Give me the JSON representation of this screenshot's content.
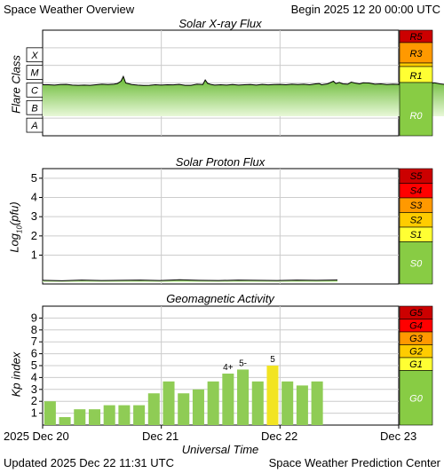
{
  "header": {
    "title": "Space Weather Overview",
    "begin": "Begin 2025 12 20 00:00 UTC"
  },
  "footer": {
    "updated": "Updated 2025 Dec 22 11:31 UTC",
    "center": "Space Weather Prediction Center",
    "xaxis_label": "Universal Time",
    "x_ticks": [
      "2025 Dec 20",
      "Dec 21",
      "Dec 22",
      "Dec 23"
    ]
  },
  "colors": {
    "red_dark": "#cc0000",
    "red": "#ff0000",
    "orange": "#ff9900",
    "gold": "#ffcc00",
    "yellow": "#ffff33",
    "green_scale": "#88cc44",
    "bar_green": "#8fcc55",
    "bar_highlight": "#f2e422",
    "fill_top": "#66b830",
    "fill_bottom": "#e8f8d8"
  },
  "chart_data": [
    {
      "type": "area",
      "title": "Solar X-ray Flux",
      "ylabel": "Flare Class",
      "y_classes": [
        "X",
        "M",
        "C",
        "B",
        "A"
      ],
      "scale": [
        {
          "label": "R5",
          "color": "#cc0000"
        },
        {
          "label": "R3",
          "color": "#ff9900"
        },
        {
          "label": "R1",
          "color": "#ffff33"
        },
        {
          "label": "R0",
          "color": "#88cc44"
        }
      ],
      "series": [
        {
          "values": [
            [
              0.0,
              4.35
            ],
            [
              0.05,
              4.35
            ],
            [
              0.1,
              4.33
            ],
            [
              0.15,
              4.36
            ],
            [
              0.2,
              4.37
            ],
            [
              0.25,
              4.33
            ],
            [
              0.3,
              4.32
            ],
            [
              0.35,
              4.33
            ],
            [
              0.4,
              4.32
            ],
            [
              0.45,
              4.35
            ],
            [
              0.5,
              4.38
            ],
            [
              0.55,
              4.36
            ],
            [
              0.6,
              4.38
            ],
            [
              0.63,
              4.42
            ],
            [
              0.66,
              4.55
            ],
            [
              0.68,
              4.82
            ],
            [
              0.7,
              4.45
            ],
            [
              0.75,
              4.36
            ],
            [
              0.8,
              4.33
            ],
            [
              0.85,
              4.31
            ],
            [
              0.9,
              4.32
            ],
            [
              0.95,
              4.35
            ],
            [
              1.0,
              4.33
            ],
            [
              1.05,
              4.35
            ],
            [
              1.1,
              4.34
            ],
            [
              1.15,
              4.37
            ],
            [
              1.2,
              4.32
            ],
            [
              1.25,
              4.32
            ],
            [
              1.3,
              4.38
            ],
            [
              1.35,
              4.36
            ],
            [
              1.37,
              4.62
            ],
            [
              1.39,
              4.43
            ],
            [
              1.42,
              4.36
            ],
            [
              1.45,
              4.33
            ],
            [
              1.5,
              4.35
            ],
            [
              1.55,
              4.33
            ],
            [
              1.6,
              4.36
            ],
            [
              1.65,
              4.33
            ],
            [
              1.7,
              4.35
            ],
            [
              1.75,
              4.36
            ],
            [
              1.8,
              4.33
            ],
            [
              1.85,
              4.37
            ],
            [
              1.9,
              4.34
            ],
            [
              1.95,
              4.36
            ],
            [
              2.0,
              4.37
            ],
            [
              2.05,
              4.35
            ],
            [
              2.1,
              4.38
            ],
            [
              2.15,
              4.36
            ],
            [
              2.2,
              4.38
            ],
            [
              2.25,
              4.35
            ],
            [
              2.3,
              4.4
            ],
            [
              2.33,
              4.42
            ],
            [
              2.35,
              4.35
            ],
            [
              2.4,
              4.4
            ],
            [
              2.45,
              4.55
            ],
            [
              2.47,
              4.42
            ],
            [
              2.5,
              4.48
            ],
            [
              2.53,
              4.4
            ],
            [
              2.57,
              4.38
            ],
            [
              2.6,
              4.5
            ],
            [
              2.63,
              4.45
            ],
            [
              2.67,
              4.4
            ],
            [
              2.7,
              4.46
            ],
            [
              2.75,
              4.45
            ],
            [
              2.8,
              4.38
            ],
            [
              2.85,
              4.4
            ],
            [
              2.9,
              4.36
            ],
            [
              2.95,
              4.38
            ],
            [
              3.0,
              4.37
            ],
            [
              3.05,
              4.36
            ],
            [
              3.1,
              4.38
            ],
            [
              3.15,
              4.37
            ],
            [
              3.2,
              4.35
            ],
            [
              3.25,
              4.4
            ],
            [
              3.3,
              4.46
            ],
            [
              3.35,
              4.4
            ],
            [
              3.4,
              4.36
            ],
            [
              3.45,
              4.38
            ],
            [
              3.5,
              4.37
            ],
            [
              3.55,
              4.45
            ],
            [
              3.6,
              4.41
            ],
            [
              3.65,
              4.38
            ],
            [
              3.7,
              4.4
            ],
            [
              3.75,
              4.38
            ],
            [
              3.77,
              4.36
            ]
          ]
        }
      ]
    },
    {
      "type": "area",
      "title": "Solar Proton Flux",
      "ylabel": "Log10(pfu)",
      "ylim": [
        -0.5,
        5.5
      ],
      "y_ticks": [
        1,
        2,
        3,
        4,
        5
      ],
      "scale": [
        {
          "label": "S5",
          "color": "#cc0000"
        },
        {
          "label": "S4",
          "color": "#ff0000"
        },
        {
          "label": "S3",
          "color": "#ff9900"
        },
        {
          "label": "S2",
          "color": "#ffcc00"
        },
        {
          "label": "S1",
          "color": "#ffff33"
        },
        {
          "label": "S0",
          "color": "#88cc44"
        }
      ],
      "series": [
        {
          "values": [
            [
              0.0,
              -0.31
            ],
            [
              0.25,
              -0.33
            ],
            [
              0.5,
              -0.3
            ],
            [
              0.75,
              -0.32
            ],
            [
              1.0,
              -0.31
            ],
            [
              1.25,
              -0.3
            ],
            [
              1.5,
              -0.32
            ],
            [
              1.75,
              -0.28
            ],
            [
              2.0,
              -0.31
            ],
            [
              2.25,
              -0.32
            ],
            [
              2.5,
              -0.3
            ],
            [
              2.75,
              -0.31
            ],
            [
              3.0,
              -0.32
            ],
            [
              3.25,
              -0.3
            ],
            [
              3.5,
              -0.31
            ],
            [
              3.77,
              -0.29
            ]
          ]
        }
      ]
    },
    {
      "type": "bar",
      "title": "Geomagnetic Activity",
      "ylabel": "Kp index",
      "ylim": [
        0,
        10
      ],
      "y_ticks": [
        1,
        2,
        3,
        4,
        5,
        6,
        7,
        8,
        9
      ],
      "scale": [
        {
          "label": "G5",
          "color": "#cc0000"
        },
        {
          "label": "G4",
          "color": "#ff0000"
        },
        {
          "label": "G3",
          "color": "#ff9900"
        },
        {
          "label": "G2",
          "color": "#ffcc00"
        },
        {
          "label": "G1",
          "color": "#ffff33"
        },
        {
          "label": "G0",
          "color": "#88cc44"
        }
      ],
      "x": [
        0.0,
        0.125,
        0.25,
        0.375,
        0.5,
        0.625,
        0.75,
        0.875,
        1.0,
        1.125,
        1.25,
        1.375,
        1.5,
        1.625,
        1.75,
        1.875,
        2.0,
        2.125,
        2.25,
        2.375
      ],
      "values": [
        2.0,
        0.67,
        1.33,
        1.33,
        1.67,
        1.67,
        1.67,
        2.67,
        3.67,
        2.67,
        3.0,
        3.67,
        4.33,
        4.67,
        3.67,
        5.0,
        3.67,
        3.33,
        3.67,
        null
      ],
      "bar_labels": [
        "",
        "",
        "",
        "",
        "",
        "",
        "",
        "",
        "",
        "",
        "",
        "",
        "4+",
        "5-",
        "",
        "5",
        "",
        "",
        "",
        ""
      ],
      "highlight_index": 15
    }
  ]
}
